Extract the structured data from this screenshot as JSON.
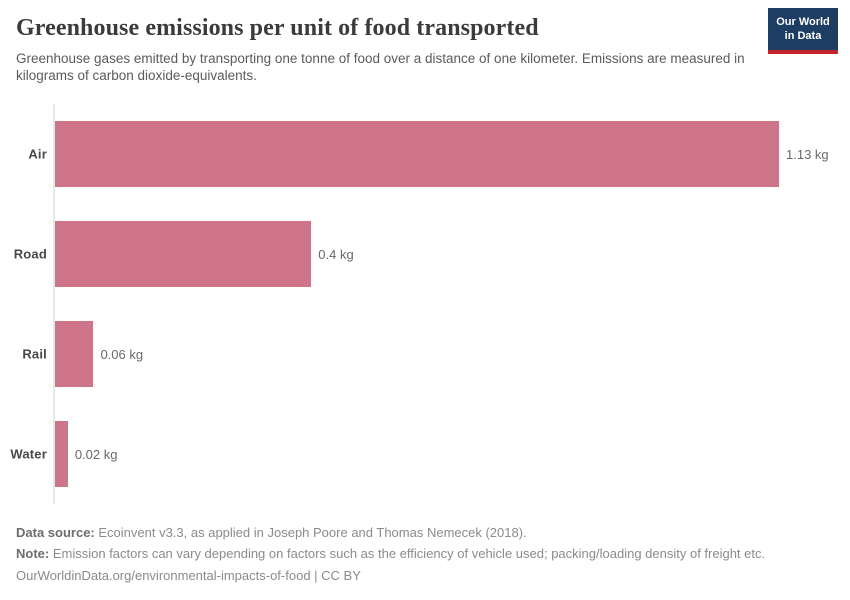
{
  "header": {
    "title": "Greenhouse emissions per unit of food transported",
    "subtitle": "Greenhouse gases emitted by transporting one tonne of food over a distance of one kilometer. Emissions are measured in kilograms of carbon dioxide-equivalents.",
    "logo": {
      "line1": "Our World",
      "line2": "in Data"
    }
  },
  "chart_data": {
    "type": "bar",
    "orientation": "horizontal",
    "title": "Greenhouse emissions per unit of food transported",
    "categories": [
      "Air",
      "Road",
      "Rail",
      "Water"
    ],
    "values": [
      1.13,
      0.4,
      0.06,
      0.02
    ],
    "value_labels": [
      "1.13 kg",
      "0.4 kg",
      "0.06 kg",
      "0.02 kg"
    ],
    "unit": "kg CO2-equivalents per tonne-kilometer",
    "xlabel": "",
    "ylabel": "",
    "xlim": [
      0,
      1.13
    ],
    "grid": false,
    "legend": "none"
  },
  "colors": {
    "bar": "#cf7589",
    "axis_line": "#e7e7e7",
    "logo_navy": "#1d3d63",
    "logo_red": "#c3232a",
    "title_text": "#3b3b3b",
    "subtitle_text": "#5b5b5b",
    "footer_text": "#8b8b8b"
  },
  "footer": {
    "data_source_label": "Data source:",
    "data_source_text": "Ecoinvent v3.3, as applied in Joseph Poore and Thomas Nemecek (2018).",
    "note_label": "Note:",
    "note_text": "Emission factors can vary depending on factors such as the efficiency of vehicle used; packing/loading density of freight etc.",
    "citation_url": "OurWorldinData.org/environmental-impacts-of-food",
    "citation_suffix": " | CC BY"
  }
}
